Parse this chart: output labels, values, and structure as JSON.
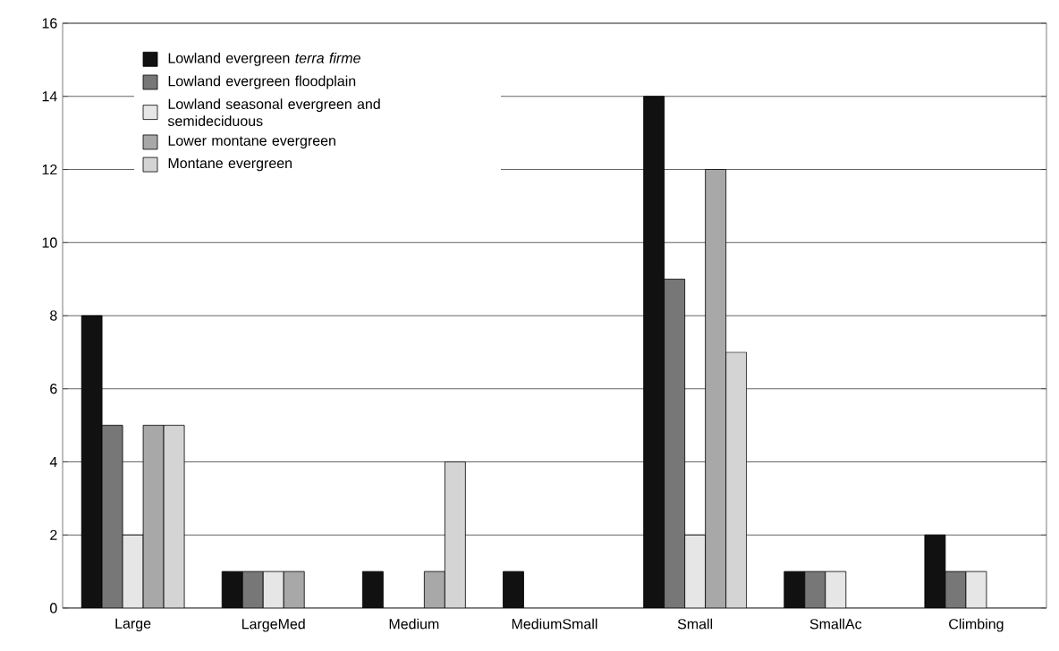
{
  "chart_data": {
    "type": "bar",
    "categories": [
      "Large",
      "LargeMed",
      "Medium",
      "MediumSmall",
      "Small",
      "SmallAc",
      "Climbing"
    ],
    "series": [
      {
        "name": "Lowland evergreen *terra firme*",
        "color": "#111111",
        "values": [
          8,
          1,
          1,
          1,
          14,
          1,
          2
        ]
      },
      {
        "name": "Lowland evergreen floodplain",
        "color": "#777777",
        "values": [
          5,
          1,
          null,
          null,
          9,
          1,
          1
        ]
      },
      {
        "name": "Lowland seasonal evergreen and semideciduous",
        "color": "#e6e6e6",
        "values": [
          2,
          1,
          null,
          null,
          2,
          1,
          1
        ]
      },
      {
        "name": "Lower montane evergreen",
        "color": "#a8a8a8",
        "values": [
          5,
          1,
          1,
          null,
          12,
          null,
          null
        ]
      },
      {
        "name": "Montane evergreen",
        "color": "#d4d4d4",
        "values": [
          5,
          null,
          4,
          null,
          7,
          null,
          null
        ]
      }
    ],
    "ylim": [
      0,
      16
    ],
    "yticks": [
      0,
      2,
      4,
      6,
      8,
      10,
      12,
      14,
      16
    ],
    "grid": "y",
    "legend": "top left"
  }
}
